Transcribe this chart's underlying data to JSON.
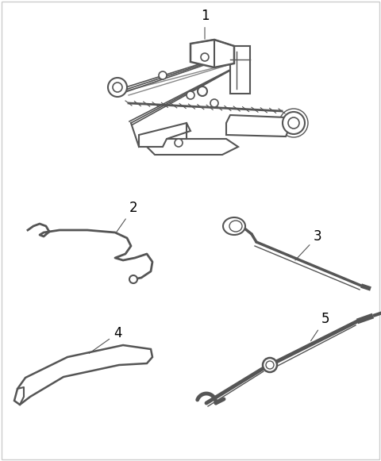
{
  "background_color": "#ffffff",
  "line_color": "#555555",
  "label_color": "#000000",
  "label_fontsize": 12,
  "border_color": "#cccccc",
  "items": [
    {
      "id": 1,
      "label": "1"
    },
    {
      "id": 2,
      "label": "2"
    },
    {
      "id": 3,
      "label": "3"
    },
    {
      "id": 4,
      "label": "4"
    },
    {
      "id": 5,
      "label": "5"
    }
  ]
}
